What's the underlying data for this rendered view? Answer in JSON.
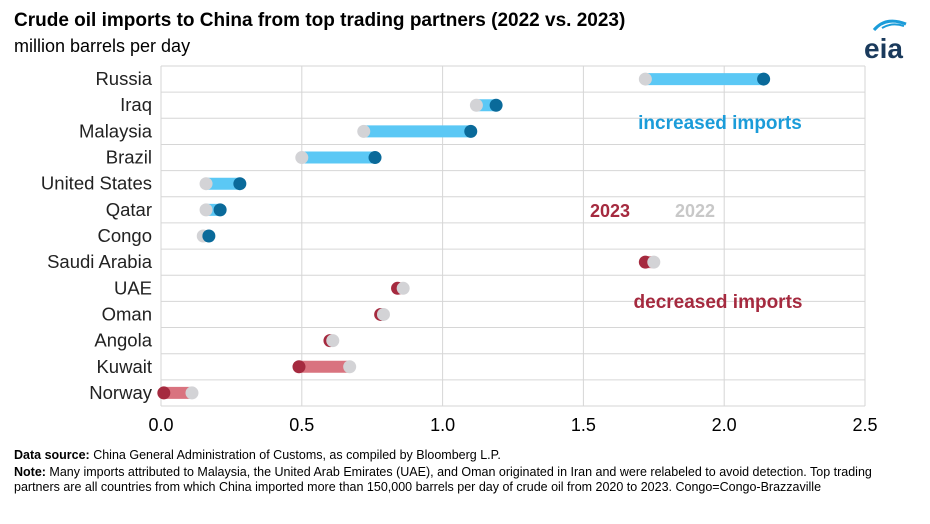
{
  "header": {
    "title": "Crude oil imports to China from top trading partners (2022 vs. 2023)",
    "subtitle": "million barrels per day",
    "logo_text": "eia"
  },
  "colors": {
    "increase_bar": "#5BC8F5",
    "increase_dot_2023": "#0A6A9A",
    "decrease_bar": "#D9737F",
    "decrease_dot_2023": "#A52A3F",
    "dot_2022": "#D3D3D6",
    "label_increase": "#1B9CD9",
    "label_2023": "#A52A3F",
    "label_2022": "#C8C8C8"
  },
  "chart_data": {
    "type": "dumbbell",
    "title": "Crude oil imports to China from top trading partners (2022 vs. 2023)",
    "ylabel": "million barrels per day",
    "xlim": [
      0,
      2.5
    ],
    "x_ticks": [
      "0.0",
      "0.5",
      "1.0",
      "1.5",
      "2.0",
      "2.5"
    ],
    "grid": true,
    "categories": [
      "Russia",
      "Iraq",
      "Malaysia",
      "Brazil",
      "United States",
      "Qatar",
      "Congo",
      "Saudi Arabia",
      "UAE",
      "Oman",
      "Angola",
      "Kuwait",
      "Norway"
    ],
    "series": [
      {
        "name": "2022",
        "values": [
          1.72,
          1.12,
          0.72,
          0.5,
          0.16,
          0.16,
          0.15,
          1.75,
          0.86,
          0.79,
          0.61,
          0.67,
          0.11
        ]
      },
      {
        "name": "2023",
        "values": [
          2.14,
          1.19,
          1.1,
          0.76,
          0.28,
          0.21,
          0.17,
          1.72,
          0.84,
          0.78,
          0.6,
          0.49,
          0.01
        ]
      }
    ],
    "annotations": {
      "increased": "increased imports",
      "decreased": "decreased imports",
      "legend_2023": "2023",
      "legend_2022": "2022"
    }
  },
  "footer": {
    "source_label": "Data source:",
    "source_text": " China General Administration of Customs, as compiled by Bloomberg L.P.",
    "note_label": "Note:",
    "note_text": " Many imports attributed to Malaysia, the United Arab Emirates (UAE), and Oman originated in Iran and were relabeled to avoid detection. Top trading partners are all countries from which China imported more than 150,000 barrels per day of crude oil from 2020 to 2023. Congo=Congo-Brazzaville"
  }
}
